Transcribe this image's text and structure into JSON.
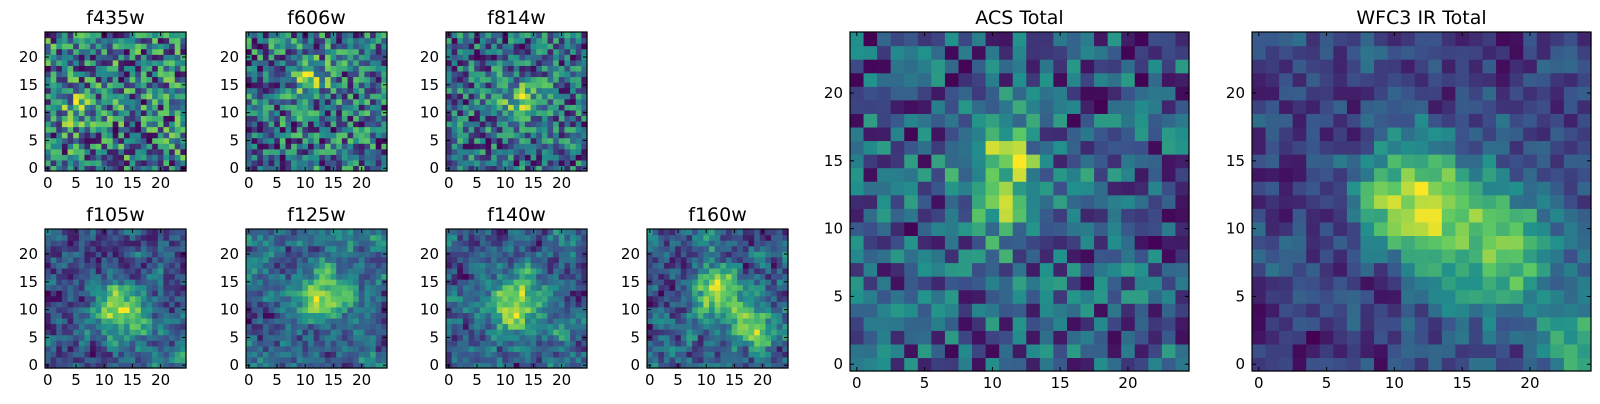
{
  "figure": {
    "colormap": "viridis",
    "cmap_stops": [
      "#440154",
      "#3b528b",
      "#21918c",
      "#5ec962",
      "#fde725"
    ]
  },
  "chart_data": [
    {
      "type": "heatmap",
      "title": "f435w",
      "grid": [
        25,
        25
      ],
      "xlim": [
        0,
        24
      ],
      "ylim": [
        0,
        24
      ],
      "xticks": [
        0,
        5,
        10,
        15,
        20
      ],
      "yticks": [
        0,
        5,
        10,
        15,
        20
      ],
      "noise": 0.5,
      "smooth": 0,
      "base": 0.72,
      "amp": 0.1,
      "blobs": [
        {
          "x": 6,
          "y": 11,
          "amp": 0.2,
          "sigma": 2.5
        }
      ]
    },
    {
      "type": "heatmap",
      "title": "f606w",
      "grid": [
        25,
        25
      ],
      "xlim": [
        0,
        24
      ],
      "ylim": [
        0,
        24
      ],
      "xticks": [
        0,
        5,
        10,
        15,
        20
      ],
      "yticks": [
        0,
        5,
        10,
        15,
        20
      ],
      "noise": 0.5,
      "smooth": 0,
      "base": 0.62,
      "amp": 0.12,
      "blobs": [
        {
          "x": 11,
          "y": 16,
          "amp": 0.25,
          "sigma": 2.5
        }
      ]
    },
    {
      "type": "heatmap",
      "title": "f814w",
      "grid": [
        25,
        25
      ],
      "xlim": [
        0,
        24
      ],
      "ylim": [
        0,
        24
      ],
      "xticks": [
        0,
        5,
        10,
        15,
        20
      ],
      "yticks": [
        0,
        5,
        10,
        15,
        20
      ],
      "noise": 0.45,
      "smooth": 0,
      "base": 0.6,
      "amp": 0.12,
      "blobs": [
        {
          "x": 13,
          "y": 12,
          "amp": 0.3,
          "sigma": 3
        }
      ]
    },
    {
      "type": "heatmap",
      "title": "f105w",
      "grid": [
        25,
        25
      ],
      "xlim": [
        0,
        24
      ],
      "ylim": [
        0,
        24
      ],
      "xticks": [
        0,
        5,
        10,
        15,
        20
      ],
      "yticks": [
        0,
        5,
        10,
        15,
        20
      ],
      "noise": 0.35,
      "smooth": 1,
      "base": 0.5,
      "amp": 0.1,
      "blobs": [
        {
          "x": 13,
          "y": 10,
          "amp": 0.45,
          "sigma": 3
        },
        {
          "x": 23,
          "y": 2,
          "amp": 0.35,
          "sigma": 1.2
        }
      ]
    },
    {
      "type": "heatmap",
      "title": "f125w",
      "grid": [
        25,
        25
      ],
      "xlim": [
        0,
        24
      ],
      "ylim": [
        0,
        24
      ],
      "xticks": [
        0,
        5,
        10,
        15,
        20
      ],
      "yticks": [
        0,
        5,
        10,
        15,
        20
      ],
      "noise": 0.35,
      "smooth": 1,
      "base": 0.55,
      "amp": 0.1,
      "blobs": [
        {
          "x": 13,
          "y": 13,
          "amp": 0.35,
          "sigma": 3
        }
      ]
    },
    {
      "type": "heatmap",
      "title": "f140w",
      "grid": [
        25,
        25
      ],
      "xlim": [
        0,
        24
      ],
      "ylim": [
        0,
        24
      ],
      "xticks": [
        0,
        5,
        10,
        15,
        20
      ],
      "yticks": [
        0,
        5,
        10,
        15,
        20
      ],
      "noise": 0.35,
      "smooth": 1,
      "base": 0.5,
      "amp": 0.1,
      "blobs": [
        {
          "x": 12,
          "y": 11,
          "amp": 0.4,
          "sigma": 3.5
        }
      ]
    },
    {
      "type": "heatmap",
      "title": "f160w",
      "grid": [
        25,
        25
      ],
      "xlim": [
        0,
        24
      ],
      "ylim": [
        0,
        24
      ],
      "xticks": [
        0,
        5,
        10,
        15,
        20
      ],
      "yticks": [
        0,
        5,
        10,
        15,
        20
      ],
      "noise": 0.4,
      "smooth": 1,
      "base": 0.45,
      "amp": 0.1,
      "blobs": [
        {
          "x": 12,
          "y": 13,
          "amp": 0.4,
          "sigma": 2.5
        },
        {
          "x": 18,
          "y": 7,
          "amp": 0.35,
          "sigma": 2.5
        }
      ]
    },
    {
      "type": "heatmap",
      "title": "ACS Total",
      "grid": [
        25,
        25
      ],
      "xlim": [
        0,
        24
      ],
      "ylim": [
        0,
        24
      ],
      "xticks": [
        0,
        5,
        10,
        15,
        20
      ],
      "yticks": [
        0,
        5,
        10,
        15,
        20
      ],
      "noise": 0.35,
      "smooth": 0,
      "base": 0.58,
      "amp": 0.1,
      "blobs": [
        {
          "x": 10,
          "y": 16,
          "amp": 0.35,
          "sigma": 2
        },
        {
          "x": 12,
          "y": 12,
          "amp": 0.3,
          "sigma": 2.5
        }
      ]
    },
    {
      "type": "heatmap",
      "title": "WFC3 IR Total",
      "grid": [
        25,
        25
      ],
      "xlim": [
        0,
        24
      ],
      "ylim": [
        0,
        24
      ],
      "xticks": [
        0,
        5,
        10,
        15,
        20
      ],
      "yticks": [
        0,
        5,
        10,
        15,
        20
      ],
      "noise": 0.2,
      "smooth": 2,
      "base": 0.42,
      "amp": 0.12,
      "blobs": [
        {
          "x": 12,
          "y": 12,
          "amp": 0.5,
          "sigma": 3
        },
        {
          "x": 18,
          "y": 8,
          "amp": 0.4,
          "sigma": 3
        },
        {
          "x": 23,
          "y": 2,
          "amp": 0.45,
          "sigma": 1.3
        }
      ]
    }
  ]
}
